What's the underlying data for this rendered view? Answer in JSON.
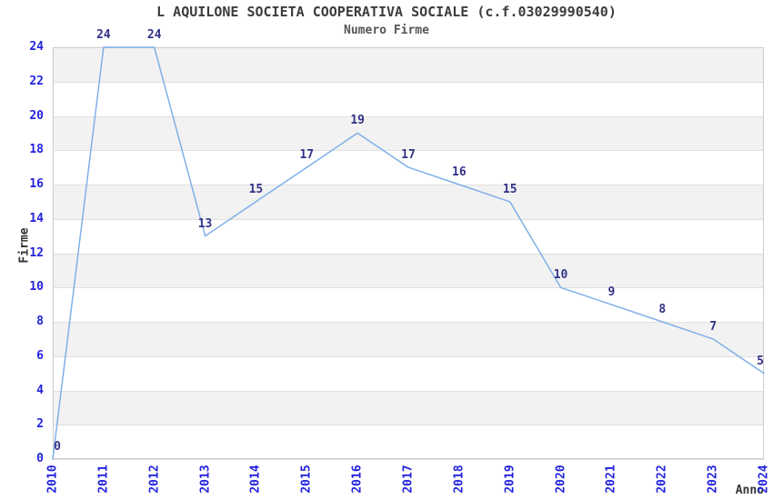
{
  "chart_data": {
    "type": "line",
    "title": "L AQUILONE SOCIETA COOPERATIVA SOCIALE (c.f.03029990540)",
    "subtitle": "Numero Firme",
    "xlabel": "Anno",
    "ylabel": "Firme",
    "categories": [
      "2010",
      "2011",
      "2012",
      "2013",
      "2014",
      "2015",
      "2016",
      "2017",
      "2018",
      "2019",
      "2020",
      "2021",
      "2022",
      "2023",
      "2024"
    ],
    "series": [
      {
        "name": "Numero Firme",
        "values": [
          0,
          24,
          24,
          13,
          15,
          17,
          19,
          17,
          16,
          15,
          10,
          9,
          8,
          7,
          5
        ]
      }
    ],
    "ylim": [
      0,
      24
    ],
    "y_ticks": [
      0,
      2,
      4,
      6,
      8,
      10,
      12,
      14,
      16,
      18,
      20,
      22,
      24
    ],
    "point_labels_shown": true,
    "legend": "none",
    "grid": "horizontal-bands-every-2-units",
    "colors": {
      "line": "#7fb0e8",
      "tick_label": "#2222dd",
      "point_label": "#333388",
      "band_fill": "#f2f2f2",
      "grid_line": "#e0e0e0",
      "plot_border": "#cccccc",
      "title_text": "#3c3c3c",
      "subtitle_text": "#555555",
      "axis_title_text": "#333333",
      "background": "#ffffff"
    }
  }
}
